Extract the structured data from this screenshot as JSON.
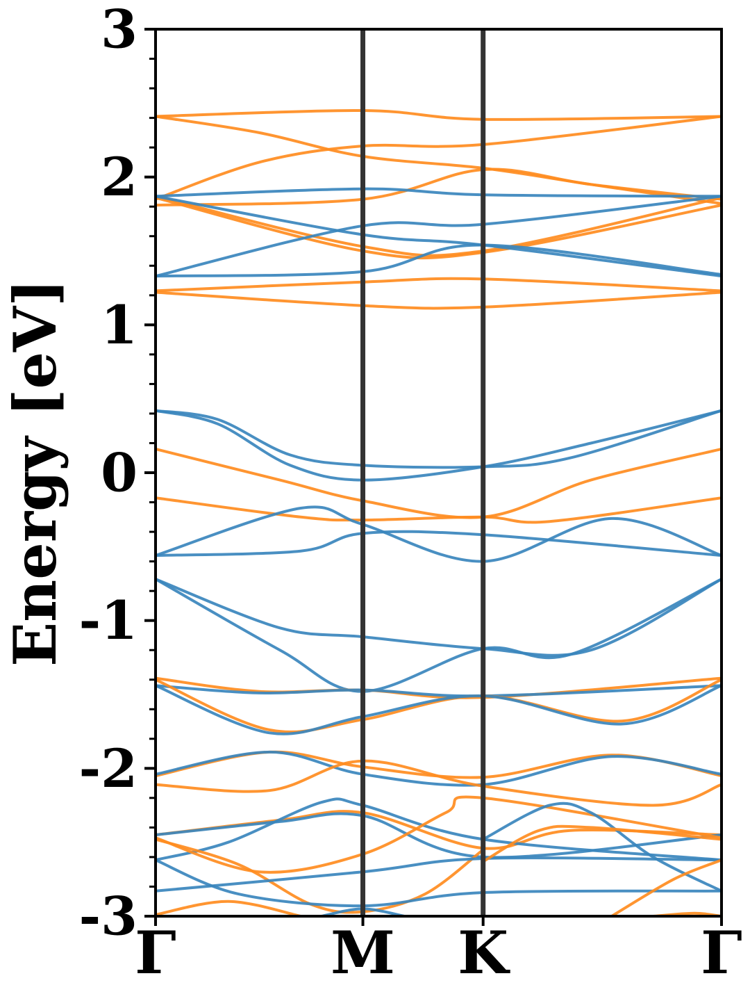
{
  "chart_data": {
    "type": "line",
    "ylabel": "Energy [eV]",
    "ylim": [
      -3,
      3
    ],
    "y_ticks": [
      "-3",
      "-2",
      "-1",
      "0",
      "1",
      "2",
      "3"
    ],
    "y_tick_values": [
      -3,
      -2,
      -1,
      0,
      1,
      2,
      3
    ],
    "xlim": [
      0,
      2.73
    ],
    "x_ticks": [
      {
        "label": "Γ",
        "value": 0
      },
      {
        "label": "M",
        "value": 1.0
      },
      {
        "label": "K",
        "value": 1.58
      },
      {
        "label": "Γ",
        "value": 2.73
      }
    ],
    "grid": false,
    "series_colors": {
      "blue": "#3a86bd",
      "orange": "#ff8c1f",
      "divider": "#333333"
    },
    "series": [
      {
        "color_key": "orange",
        "x": [
          0,
          1,
          1.58,
          2.73
        ],
        "y": [
          2.41,
          2.45,
          2.39,
          2.41
        ]
      },
      {
        "color_key": "orange",
        "x": [
          0,
          0.5,
          1,
          1.58,
          2.1,
          2.73
        ],
        "y": [
          2.41,
          2.3,
          2.14,
          2.06,
          1.95,
          1.82
        ]
      },
      {
        "color_key": "orange",
        "x": [
          0,
          0.5,
          1,
          1.58,
          2.73
        ],
        "y": [
          1.85,
          2.1,
          2.21,
          2.22,
          2.41
        ]
      },
      {
        "color_key": "orange",
        "x": [
          0,
          1,
          1.58,
          2.1,
          2.73
        ],
        "y": [
          1.81,
          1.85,
          2.05,
          1.95,
          1.85
        ]
      },
      {
        "color_key": "orange",
        "x": [
          0,
          1,
          1.58,
          2.73
        ],
        "y": [
          1.86,
          1.5,
          1.49,
          1.81
        ]
      },
      {
        "color_key": "orange",
        "x": [
          0,
          1,
          1.58,
          2.73
        ],
        "y": [
          1.87,
          1.53,
          1.5,
          1.86
        ]
      },
      {
        "color_key": "blue",
        "x": [
          0,
          1,
          1.58,
          2.73
        ],
        "y": [
          1.87,
          1.92,
          1.88,
          1.87
        ]
      },
      {
        "color_key": "blue",
        "x": [
          0,
          1,
          1.58,
          2.73
        ],
        "y": [
          1.87,
          1.61,
          1.54,
          1.33
        ]
      },
      {
        "color_key": "blue",
        "x": [
          0,
          1,
          1.58,
          2.73
        ],
        "y": [
          1.33,
          1.67,
          1.68,
          1.87
        ]
      },
      {
        "color_key": "blue",
        "x": [
          0,
          1,
          1.58,
          2.73
        ],
        "y": [
          1.33,
          1.36,
          1.54,
          1.34
        ]
      },
      {
        "color_key": "orange",
        "x": [
          0,
          1,
          1.58,
          2.73
        ],
        "y": [
          1.23,
          1.29,
          1.31,
          1.23
        ]
      },
      {
        "color_key": "orange",
        "x": [
          0,
          1,
          1.58,
          2.73
        ],
        "y": [
          1.22,
          1.13,
          1.12,
          1.22
        ]
      },
      {
        "color_key": "blue",
        "x": [
          0,
          0.3,
          0.65,
          1,
          1.58,
          2.0,
          2.73
        ],
        "y": [
          0.42,
          0.36,
          0.12,
          0.05,
          0.04,
          0.1,
          0.42
        ]
      },
      {
        "color_key": "blue",
        "x": [
          0,
          0.3,
          0.65,
          1,
          1.58,
          2.1,
          2.73
        ],
        "y": [
          0.42,
          0.33,
          0.05,
          -0.05,
          0.04,
          0.2,
          0.42
        ]
      },
      {
        "color_key": "orange",
        "x": [
          0,
          0.6,
          1,
          1.58,
          2.1,
          2.73
        ],
        "y": [
          0.16,
          -0.05,
          -0.19,
          -0.3,
          -0.05,
          0.16
        ]
      },
      {
        "color_key": "orange",
        "x": [
          0,
          0.7,
          1,
          1.58,
          1.9,
          2.73
        ],
        "y": [
          -0.17,
          -0.3,
          -0.32,
          -0.3,
          -0.33,
          -0.17
        ]
      },
      {
        "color_key": "blue",
        "x": [
          0,
          0.7,
          1,
          1.58,
          2.73
        ],
        "y": [
          -0.56,
          -0.53,
          -0.41,
          -0.42,
          -0.56
        ]
      },
      {
        "color_key": "blue",
        "x": [
          0,
          0.7,
          1,
          1.58,
          2.2,
          2.73
        ],
        "y": [
          -0.56,
          -0.24,
          -0.35,
          -0.6,
          -0.31,
          -0.56
        ]
      },
      {
        "color_key": "blue",
        "x": [
          0,
          0.6,
          1,
          1.58,
          2.1,
          2.73
        ],
        "y": [
          -0.72,
          -1.05,
          -1.11,
          -1.19,
          -1.2,
          -0.72
        ]
      },
      {
        "color_key": "blue",
        "x": [
          0,
          0.6,
          1,
          1.58,
          2.0,
          2.73
        ],
        "y": [
          -0.72,
          -1.2,
          -1.48,
          -1.19,
          -1.23,
          -0.72
        ]
      },
      {
        "color_key": "orange",
        "x": [
          0,
          0.5,
          1,
          1.58,
          2.73
        ],
        "y": [
          -1.39,
          -1.48,
          -1.47,
          -1.52,
          -1.39
        ]
      },
      {
        "color_key": "blue",
        "x": [
          0,
          0.5,
          1,
          1.58,
          2.73
        ],
        "y": [
          -1.44,
          -1.49,
          -1.47,
          -1.51,
          -1.44
        ]
      },
      {
        "color_key": "orange",
        "x": [
          0,
          0.55,
          1,
          1.58,
          2.25,
          2.73
        ],
        "y": [
          -1.4,
          -1.74,
          -1.67,
          -1.51,
          -1.68,
          -1.4
        ]
      },
      {
        "color_key": "blue",
        "x": [
          0,
          0.55,
          1,
          1.58,
          2.25,
          2.73
        ],
        "y": [
          -1.44,
          -1.76,
          -1.65,
          -1.51,
          -1.7,
          -1.44
        ]
      },
      {
        "color_key": "orange",
        "x": [
          0,
          0.55,
          1,
          1.58,
          2.2,
          2.73
        ],
        "y": [
          -2.05,
          -1.89,
          -1.99,
          -2.06,
          -1.91,
          -2.05
        ]
      },
      {
        "color_key": "blue",
        "x": [
          0,
          0.55,
          1,
          1.58,
          2.2,
          2.73
        ],
        "y": [
          -2.04,
          -1.89,
          -2.04,
          -2.11,
          -1.92,
          -2.04
        ]
      },
      {
        "color_key": "orange",
        "x": [
          0,
          0.55,
          1,
          1.58,
          2.4,
          2.73
        ],
        "y": [
          -2.11,
          -2.15,
          -1.95,
          -2.12,
          -2.25,
          -2.11
        ]
      },
      {
        "color_key": "orange",
        "x": [
          0,
          0.6,
          1,
          1.58,
          2.0,
          2.73
        ],
        "y": [
          -2.45,
          -2.35,
          -2.3,
          -2.54,
          -2.42,
          -2.45
        ]
      },
      {
        "color_key": "blue",
        "x": [
          0,
          0.6,
          1,
          1.58,
          2.73
        ],
        "y": [
          -2.45,
          -2.36,
          -2.32,
          -2.6,
          -2.45
        ]
      },
      {
        "color_key": "blue",
        "x": [
          0,
          0.35,
          0.8,
          1,
          1.58,
          2.73
        ],
        "y": [
          -2.62,
          -2.5,
          -2.23,
          -2.25,
          -2.48,
          -2.62
        ]
      },
      {
        "color_key": "orange",
        "x": [
          0,
          0.5,
          1,
          1.4,
          1.58,
          2.73
        ],
        "y": [
          -2.47,
          -2.7,
          -2.58,
          -2.3,
          -2.2,
          -2.47
        ]
      },
      {
        "color_key": "orange",
        "x": [
          0,
          0.4,
          0.75,
          1,
          1.3,
          1.58
        ],
        "y": [
          -2.48,
          -2.65,
          -2.92,
          -2.97,
          -2.85,
          -2.55
        ]
      },
      {
        "color_key": "blue",
        "x": [
          1.58,
          1.9,
          2.1,
          2.4,
          2.73
        ],
        "y": [
          -2.48,
          -2.25,
          -2.3,
          -2.6,
          -2.83
        ]
      },
      {
        "color_key": "blue",
        "x": [
          0,
          1,
          1.58,
          2.73
        ],
        "y": [
          -2.83,
          -2.7,
          -2.61,
          -2.62
        ]
      },
      {
        "color_key": "blue",
        "x": [
          0,
          0.4,
          1,
          1.58,
          2.73
        ],
        "y": [
          -2.62,
          -2.85,
          -2.93,
          -2.84,
          -2.83
        ]
      },
      {
        "color_key": "orange",
        "x": [
          0,
          0.35,
          0.7
        ],
        "y": [
          -2.99,
          -2.9,
          -3.0
        ]
      },
      {
        "color_key": "orange",
        "x": [
          1.58,
          1.85,
          2.1,
          2.73
        ],
        "y": [
          -2.63,
          -2.42,
          -2.4,
          -2.48
        ]
      },
      {
        "color_key": "orange",
        "x": [
          2.2,
          2.5,
          2.73
        ],
        "y": [
          -3.0,
          -2.75,
          -2.62
        ]
      },
      {
        "color_key": "orange",
        "x": [
          2.4,
          2.6,
          2.73
        ],
        "y": [
          -3.0,
          -2.98,
          -3.0
        ]
      },
      {
        "color_key": "blue",
        "x": [
          0.8,
          1.0,
          1.2
        ],
        "y": [
          -3.0,
          -2.95,
          -3.0
        ]
      }
    ]
  }
}
